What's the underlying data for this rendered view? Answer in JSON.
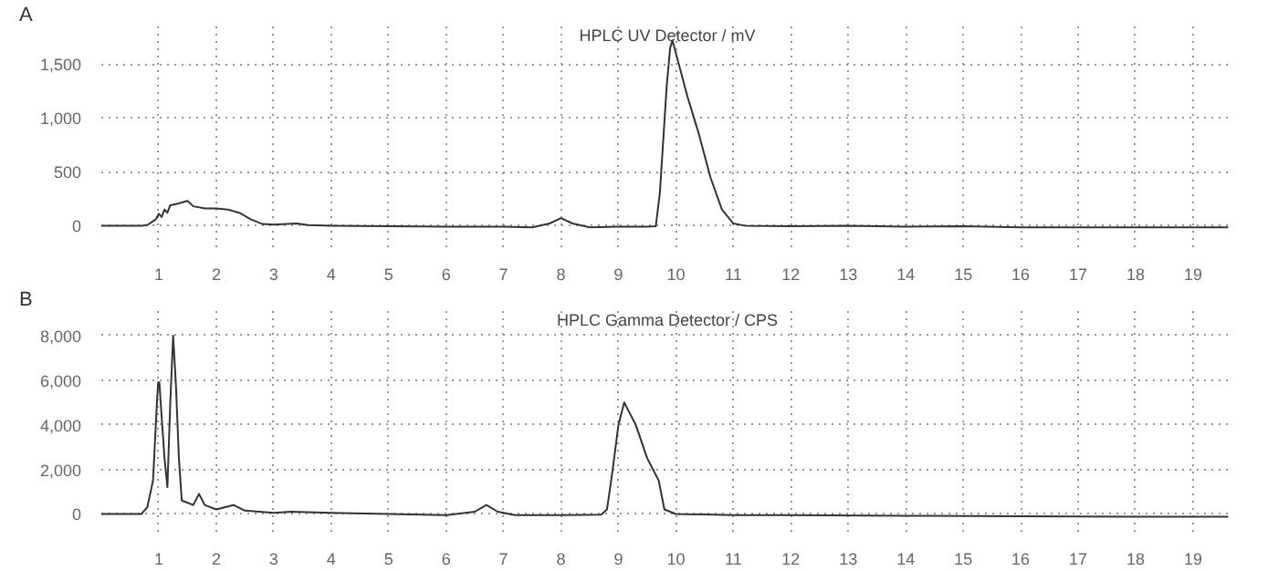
{
  "chart_data": [
    {
      "type": "line",
      "title": "HPLC UV Detector / mV",
      "annotations": [
        "A"
      ],
      "grid": true,
      "marker": "none",
      "line_style": "solid",
      "xlim": [
        0,
        19.7
      ],
      "xticks": [
        1,
        2,
        3,
        4,
        5,
        6,
        7,
        8,
        9,
        10,
        11,
        12,
        13,
        14,
        15,
        16,
        17,
        18,
        19
      ],
      "ylim": [
        -200,
        1850
      ],
      "yticks": [
        0,
        {
          "value": 500,
          "label": "500"
        },
        {
          "value": 1000,
          "label": "1,000"
        },
        {
          "value": 1500,
          "label": "1,500"
        }
      ],
      "series": [
        {
          "color": "#333333",
          "x": [
            0,
            0.7,
            0.8,
            0.95,
            1.0,
            1.05,
            1.1,
            1.15,
            1.2,
            1.3,
            1.5,
            1.6,
            1.8,
            2.0,
            2.2,
            2.4,
            2.6,
            2.8,
            3.0,
            3.4,
            3.6,
            4,
            5,
            6,
            7,
            7.5,
            7.8,
            8.0,
            8.2,
            8.5,
            9,
            9.5,
            9.65,
            9.72,
            9.78,
            9.84,
            9.9,
            9.94,
            10.05,
            10.2,
            10.4,
            10.6,
            10.8,
            11.0,
            11.2,
            12,
            13,
            14,
            15,
            16,
            17,
            18,
            19,
            19.6
          ],
          "values": [
            0,
            0,
            5,
            60,
            110,
            80,
            150,
            120,
            190,
            200,
            230,
            180,
            160,
            160,
            150,
            120,
            60,
            15,
            10,
            20,
            5,
            0,
            -5,
            -10,
            -10,
            -15,
            20,
            70,
            20,
            -15,
            -10,
            -10,
            -5,
            300,
            800,
            1300,
            1650,
            1720,
            1500,
            1200,
            850,
            450,
            150,
            20,
            0,
            -5,
            0,
            -10,
            -5,
            -15,
            -15,
            -15,
            -15,
            -15
          ]
        }
      ]
    },
    {
      "type": "line",
      "title": "HPLC Gamma Detector / CPS",
      "annotations": [
        "B"
      ],
      "grid": true,
      "marker": "none",
      "line_style": "solid",
      "xlim": [
        0,
        19.7
      ],
      "xticks": [
        1,
        2,
        3,
        4,
        5,
        6,
        7,
        8,
        9,
        10,
        11,
        12,
        13,
        14,
        15,
        16,
        17,
        18,
        19
      ],
      "ylim": [
        -800,
        9100
      ],
      "yticks": [
        0,
        {
          "value": 2000,
          "label": "2,000"
        },
        {
          "value": 4000,
          "label": "4,000"
        },
        {
          "value": 6000,
          "label": "6,000"
        },
        {
          "value": 8000,
          "label": "8,000"
        }
      ],
      "series": [
        {
          "color": "#333333",
          "x": [
            0,
            0.7,
            0.8,
            0.9,
            0.97,
            0.99,
            1.01,
            1.03,
            1.1,
            1.15,
            1.2,
            1.25,
            1.3,
            1.35,
            1.4,
            1.6,
            1.7,
            1.8,
            2.0,
            2.3,
            2.5,
            3,
            3.3,
            4,
            5,
            6,
            6.5,
            6.7,
            6.9,
            7.2,
            8,
            8.7,
            8.8,
            8.9,
            9.0,
            9.1,
            9.3,
            9.5,
            9.7,
            9.8,
            10,
            11,
            12,
            14,
            16,
            18,
            19.6
          ],
          "values": [
            0,
            0,
            300,
            1500,
            5100,
            5900,
            5900,
            5100,
            2500,
            1200,
            5000,
            8000,
            5700,
            2500,
            600,
            400,
            900,
            400,
            200,
            400,
            150,
            50,
            100,
            50,
            0,
            -50,
            100,
            400,
            100,
            -50,
            -50,
            -30,
            200,
            2000,
            4000,
            5000,
            4000,
            2500,
            1500,
            200,
            0,
            -50,
            -50,
            -80,
            -100,
            -120,
            -120
          ]
        }
      ]
    }
  ]
}
